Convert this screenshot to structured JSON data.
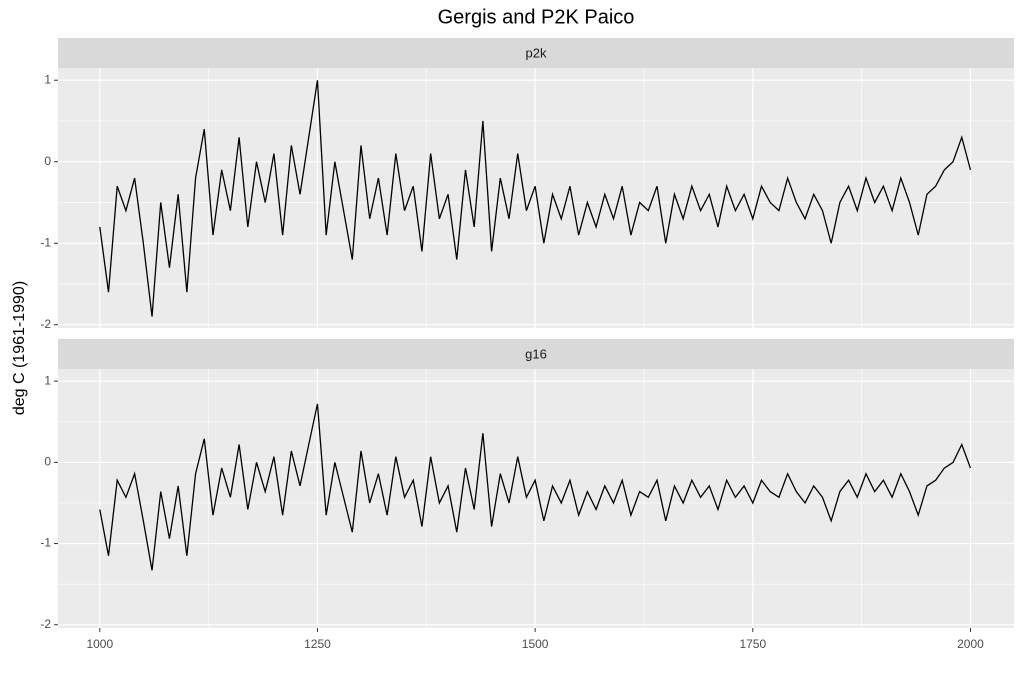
{
  "chart_data": {
    "type": "line",
    "title": "Gergis and P2K Paico",
    "ylabel": "deg C (1961-1990)",
    "facets": true,
    "x": [
      1000,
      1010,
      1020,
      1030,
      1040,
      1050,
      1060,
      1070,
      1080,
      1090,
      1100,
      1110,
      1120,
      1130,
      1140,
      1150,
      1160,
      1170,
      1180,
      1190,
      1200,
      1210,
      1220,
      1230,
      1240,
      1250,
      1260,
      1270,
      1280,
      1290,
      1300,
      1310,
      1320,
      1330,
      1340,
      1350,
      1360,
      1370,
      1380,
      1390,
      1400,
      1410,
      1420,
      1430,
      1440,
      1450,
      1460,
      1470,
      1480,
      1490,
      1500,
      1510,
      1520,
      1530,
      1540,
      1550,
      1560,
      1570,
      1580,
      1590,
      1600,
      1610,
      1620,
      1630,
      1640,
      1650,
      1660,
      1670,
      1680,
      1690,
      1700,
      1710,
      1720,
      1730,
      1740,
      1750,
      1760,
      1770,
      1780,
      1790,
      1800,
      1810,
      1820,
      1830,
      1840,
      1850,
      1860,
      1870,
      1880,
      1890,
      1900,
      1910,
      1920,
      1930,
      1940,
      1950,
      1960,
      1970,
      1980,
      1990,
      2000
    ],
    "series": [
      {
        "name": "p2k",
        "color": "#000000",
        "values": [
          -0.8,
          -1.6,
          -0.3,
          -0.6,
          -0.2,
          -1.0,
          -1.9,
          -0.5,
          -1.3,
          -0.4,
          -1.6,
          -0.2,
          0.4,
          -0.9,
          -0.1,
          -0.6,
          0.3,
          -0.8,
          0.0,
          -0.5,
          0.1,
          -0.9,
          0.2,
          -0.4,
          0.3,
          1.0,
          -0.9,
          0.0,
          -0.6,
          -1.2,
          0.2,
          -0.7,
          -0.2,
          -0.9,
          0.1,
          -0.6,
          -0.3,
          -1.1,
          0.1,
          -0.7,
          -0.4,
          -1.2,
          -0.1,
          -0.8,
          0.5,
          -1.1,
          -0.2,
          -0.7,
          0.1,
          -0.6,
          -0.3,
          -1.0,
          -0.4,
          -0.7,
          -0.3,
          -0.9,
          -0.5,
          -0.8,
          -0.4,
          -0.7,
          -0.3,
          -0.9,
          -0.5,
          -0.6,
          -0.3,
          -1.0,
          -0.4,
          -0.7,
          -0.3,
          -0.6,
          -0.4,
          -0.8,
          -0.3,
          -0.6,
          -0.4,
          -0.7,
          -0.3,
          -0.5,
          -0.6,
          -0.2,
          -0.5,
          -0.7,
          -0.4,
          -0.6,
          -1.0,
          -0.5,
          -0.3,
          -0.6,
          -0.2,
          -0.5,
          -0.3,
          -0.6,
          -0.2,
          -0.5,
          -0.9,
          -0.4,
          -0.3,
          -0.1,
          0.0,
          0.3,
          -0.1
        ]
      },
      {
        "name": "g16",
        "color": "#000000",
        "values": [
          -0.58,
          -1.15,
          -0.22,
          -0.43,
          -0.14,
          -0.72,
          -1.33,
          -0.36,
          -0.94,
          -0.29,
          -1.15,
          -0.14,
          0.29,
          -0.65,
          -0.07,
          -0.43,
          0.22,
          -0.58,
          0.0,
          -0.36,
          0.07,
          -0.65,
          0.14,
          -0.29,
          0.22,
          0.72,
          -0.65,
          0.0,
          -0.43,
          -0.86,
          0.14,
          -0.5,
          -0.14,
          -0.65,
          0.07,
          -0.43,
          -0.22,
          -0.79,
          0.07,
          -0.5,
          -0.29,
          -0.86,
          -0.07,
          -0.58,
          0.36,
          -0.79,
          -0.14,
          -0.5,
          0.07,
          -0.43,
          -0.22,
          -0.72,
          -0.29,
          -0.5,
          -0.22,
          -0.65,
          -0.36,
          -0.58,
          -0.29,
          -0.5,
          -0.22,
          -0.65,
          -0.36,
          -0.43,
          -0.22,
          -0.72,
          -0.29,
          -0.5,
          -0.22,
          -0.43,
          -0.29,
          -0.58,
          -0.22,
          -0.43,
          -0.29,
          -0.5,
          -0.22,
          -0.36,
          -0.43,
          -0.14,
          -0.36,
          -0.5,
          -0.29,
          -0.43,
          -0.72,
          -0.36,
          -0.22,
          -0.43,
          -0.14,
          -0.36,
          -0.22,
          -0.43,
          -0.14,
          -0.36,
          -0.65,
          -0.29,
          -0.22,
          -0.07,
          0.0,
          0.22,
          -0.07
        ]
      }
    ],
    "xlim": [
      952,
      2050
    ],
    "xticks": [
      1000,
      1250,
      1500,
      1750,
      2000
    ],
    "ylim": [
      -2.04,
      1.15
    ],
    "yticks": [
      -2,
      -1,
      0,
      1
    ],
    "grid": true
  }
}
